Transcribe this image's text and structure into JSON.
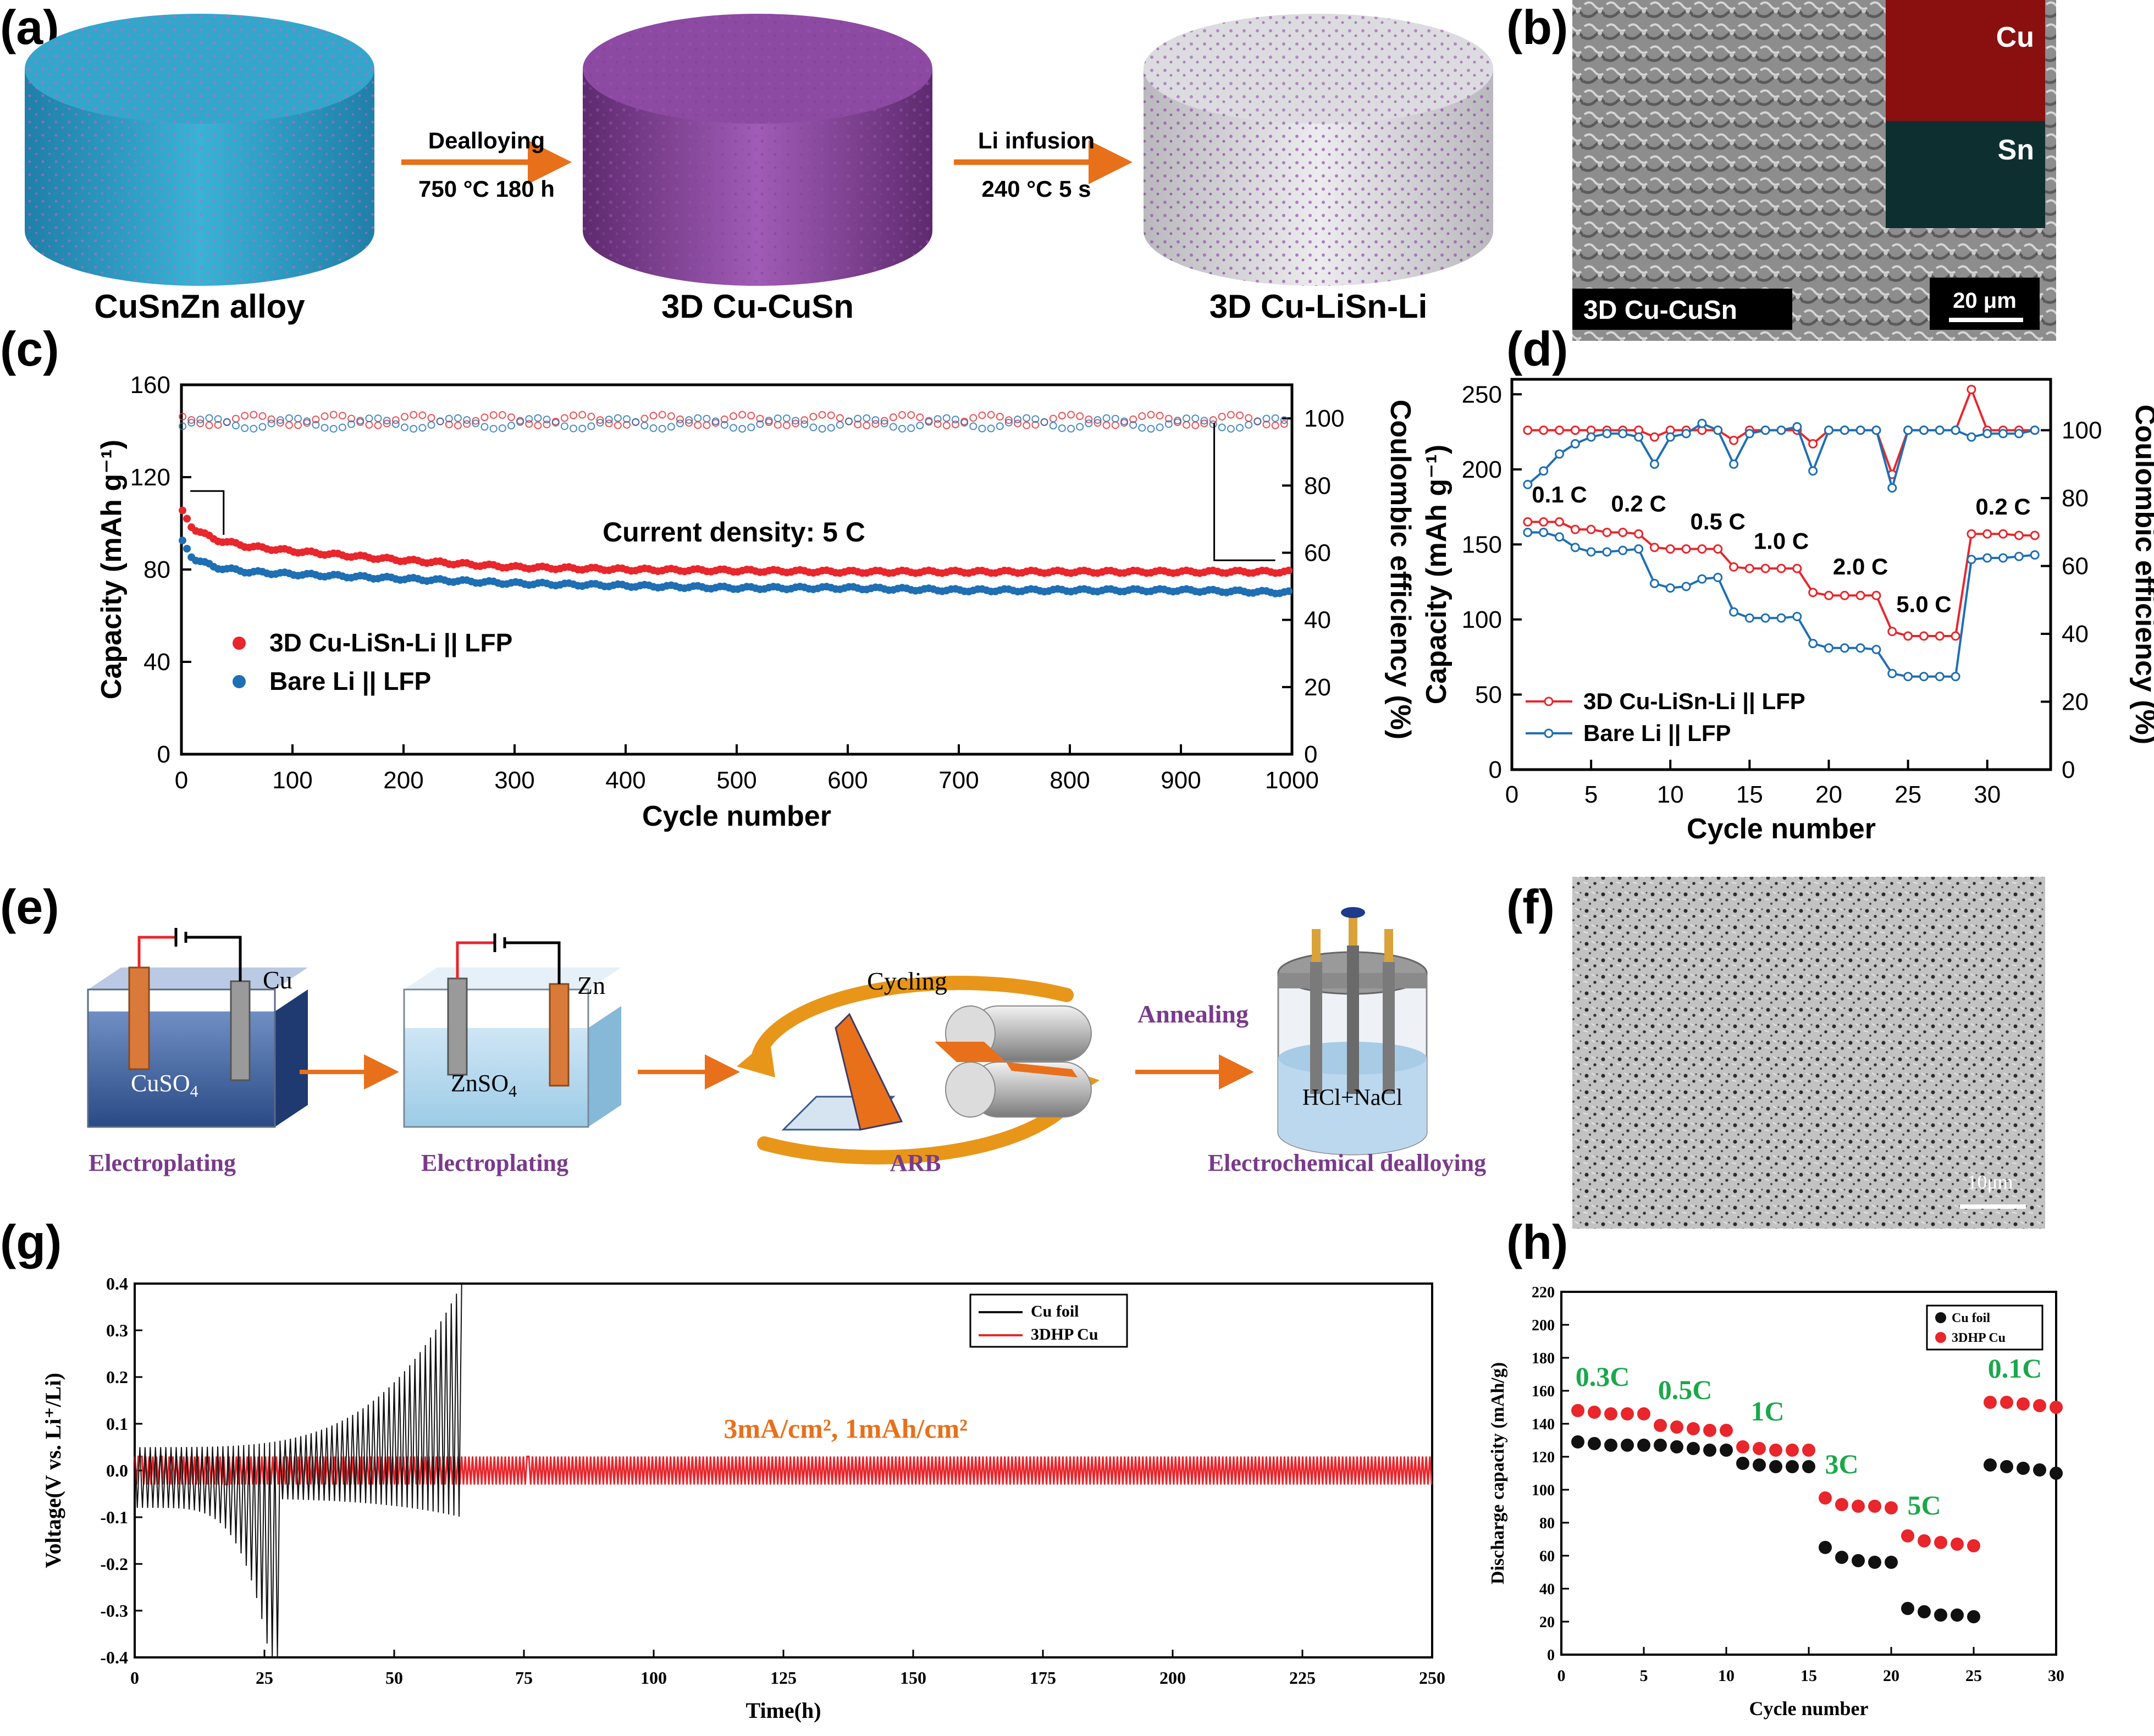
{
  "panel_labels": {
    "a": "(a)",
    "b": "(b)",
    "c": "(c)",
    "d": "(d)",
    "e": "(e)",
    "f": "(f)",
    "g": "(g)",
    "h": "(h)"
  },
  "colors": {
    "red": "#e8262c",
    "blue": "#1e6fb3",
    "blue_alloy": "#2a9fc4",
    "purple": "#8a3f9a",
    "orange": "#e8701a",
    "green": "#1aa84a",
    "dark_purple": "#7a3a8c",
    "grey_sem": "#9a9a9a"
  },
  "panel_a": {
    "items": [
      "CuSnZn alloy",
      "3D Cu-CuSn",
      "3D Cu-LiSn-Li"
    ],
    "arrow1": {
      "top": "Dealloying",
      "bottom": "750 °C 180 h"
    },
    "arrow2": {
      "top": "Li infusion",
      "bottom": "240 °C 5 s"
    }
  },
  "panel_b": {
    "label": "3D Cu-CuSn",
    "scale": "20 μm",
    "map_cu": "Cu",
    "map_sn": "Sn"
  },
  "panel_e": {
    "electrode_cu": "Cu",
    "electrode_zn": "Zn",
    "sol1": "CuSO",
    "sol1_sub": "4",
    "sol2": "ZnSO",
    "sol2_sub": "4",
    "cycling": "Cycling",
    "annealing": "Annealing",
    "sol3": "HCl+NaCl",
    "steps": [
      "Electroplating",
      "Electroplating",
      "ARB",
      "Electrochemical dealloying"
    ]
  },
  "panel_f": {
    "scale": "10μm"
  },
  "chart_data": [
    {
      "id": "c",
      "type": "scatter",
      "xlabel": "Cycle number",
      "ylabel": "Capacity (mAh g⁻¹)",
      "y2label": "Coulombic efficiency (%)",
      "xlim": [
        0,
        1000
      ],
      "ylim": [
        0,
        160
      ],
      "y2lim": [
        0,
        110
      ],
      "xticks": [
        0,
        100,
        200,
        300,
        400,
        500,
        600,
        700,
        800,
        900,
        1000
      ],
      "yticks": [
        0,
        40,
        80,
        120,
        160
      ],
      "y2ticks": [
        0,
        20,
        40,
        60,
        80,
        100
      ],
      "annotation": "Current density: 5 C",
      "series": [
        {
          "name": "3D Cu-LiSn-Li || LFP",
          "color": "#e8262c",
          "x": [
            1,
            10,
            30,
            60,
            100,
            150,
            200,
            300,
            400,
            500,
            600,
            700,
            800,
            900,
            1000
          ],
          "capacity": [
            105,
            98,
            93,
            90,
            88,
            86,
            84,
            81,
            80,
            79.5,
            79,
            79,
            79,
            79,
            79
          ],
          "ce": 99.5
        },
        {
          "name": "Bare Li || LFP",
          "color": "#1e6fb3",
          "x": [
            1,
            10,
            30,
            60,
            100,
            150,
            200,
            300,
            400,
            500,
            600,
            700,
            800,
            900,
            1000
          ],
          "capacity": [
            92,
            85,
            81,
            79,
            78,
            77,
            76,
            74,
            73,
            72,
            72,
            71,
            71,
            71,
            70
          ],
          "ce": 98.5
        }
      ]
    },
    {
      "id": "d",
      "type": "line",
      "xlabel": "Cycle number",
      "ylabel": "Capacity (mAh g⁻¹)",
      "y2label": "Coulombic efficiency (%)",
      "xlim": [
        0,
        34
      ],
      "ylim": [
        0,
        260
      ],
      "y2lim": [
        0,
        115
      ],
      "xticks": [
        0,
        5,
        10,
        15,
        20,
        25,
        30
      ],
      "yticks": [
        0,
        50,
        100,
        150,
        200,
        250
      ],
      "y2ticks": [
        0,
        20,
        40,
        60,
        80,
        100
      ],
      "rate_labels": [
        "0.1 C",
        "0.2 C",
        "0.5 C",
        "1.0 C",
        "2.0 C",
        "5.0 C",
        "0.2 C"
      ],
      "series": [
        {
          "name": "3D Cu-LiSn-Li || LFP",
          "color": "#e8262c",
          "capacity": [
            165,
            165,
            165,
            160,
            160,
            158,
            158,
            157,
            148,
            147,
            147,
            147,
            147,
            135,
            134,
            134,
            134,
            134,
            118,
            116,
            116,
            116,
            116,
            92,
            89,
            89,
            89,
            89,
            157,
            157,
            157,
            156,
            156
          ],
          "ce": [
            100,
            100,
            100,
            100,
            100,
            100,
            100,
            100,
            98,
            100,
            100,
            100,
            100,
            97,
            100,
            100,
            100,
            100,
            96,
            100,
            100,
            100,
            100,
            87,
            100,
            100,
            100,
            100,
            112,
            100,
            100,
            100,
            100
          ]
        },
        {
          "name": "Bare Li || LFP",
          "color": "#1e6fb3",
          "capacity": [
            158,
            158,
            155,
            148,
            145,
            145,
            146,
            147,
            124,
            121,
            122,
            127,
            128,
            105,
            101,
            101,
            101,
            102,
            84,
            81,
            81,
            81,
            80,
            64,
            62,
            62,
            62,
            62,
            140,
            141,
            141,
            142,
            143
          ],
          "ce": [
            84,
            88,
            93,
            96,
            98,
            99,
            99,
            98,
            90,
            98,
            99,
            102,
            100,
            90,
            99,
            100,
            100,
            101,
            88,
            100,
            100,
            100,
            100,
            83,
            100,
            100,
            100,
            100,
            98,
            99,
            99,
            99,
            100
          ]
        }
      ]
    },
    {
      "id": "g",
      "type": "line",
      "xlabel": "Time(h)",
      "ylabel": "Voltage(V vs. Li⁺/Li)",
      "xlim": [
        0,
        250
      ],
      "ylim": [
        -0.4,
        0.4
      ],
      "xticks": [
        0,
        25,
        50,
        75,
        100,
        125,
        150,
        175,
        200,
        225,
        250
      ],
      "yticks": [
        -0.4,
        -0.3,
        -0.2,
        -0.1,
        0.0,
        0.1,
        0.2,
        0.3,
        0.4
      ],
      "annotation": "3mA/cm², 1mAh/cm²",
      "series": [
        {
          "name": "Cu foil",
          "color": "#111111",
          "end_time": 63,
          "amplitude_start": 0.05,
          "amplitude_end": 0.4
        },
        {
          "name": "3DHP Cu",
          "color": "#e8262c",
          "end_time": 250,
          "amplitude": 0.03
        }
      ]
    },
    {
      "id": "h",
      "type": "scatter",
      "xlabel": "Cycle number",
      "ylabel": "Discharge capacity (mAh/g)",
      "xlim": [
        0,
        30
      ],
      "ylim": [
        0,
        220
      ],
      "xticks": [
        0,
        5,
        10,
        15,
        20,
        25,
        30
      ],
      "yticks": [
        0,
        20,
        40,
        60,
        80,
        100,
        120,
        140,
        160,
        180,
        200,
        220
      ],
      "rate_labels": [
        "0.3C",
        "0.5C",
        "1C",
        "3C",
        "5C",
        "0.1C"
      ],
      "series": [
        {
          "name": "Cu foil",
          "color": "#111111",
          "x": [
            1,
            2,
            3,
            4,
            5,
            6,
            7,
            8,
            9,
            10,
            11,
            12,
            13,
            14,
            15,
            16,
            17,
            18,
            19,
            20,
            21,
            22,
            23,
            24,
            25,
            26,
            27,
            28,
            29,
            30
          ],
          "values": [
            129,
            128,
            127,
            127,
            127,
            127,
            126,
            125,
            124,
            124,
            116,
            115,
            114,
            114,
            114,
            65,
            59,
            57,
            56,
            56,
            28,
            26,
            24,
            24,
            23,
            115,
            114,
            113,
            112,
            110
          ]
        },
        {
          "name": "3DHP Cu",
          "color": "#e8262c",
          "x": [
            1,
            2,
            3,
            4,
            5,
            6,
            7,
            8,
            9,
            10,
            11,
            12,
            13,
            14,
            15,
            16,
            17,
            18,
            19,
            20,
            21,
            22,
            23,
            24,
            25,
            26,
            27,
            28,
            29,
            30
          ],
          "values": [
            148,
            147,
            146,
            146,
            146,
            139,
            138,
            137,
            136,
            136,
            126,
            125,
            124,
            124,
            124,
            95,
            91,
            90,
            90,
            89,
            72,
            69,
            68,
            67,
            66,
            153,
            153,
            152,
            151,
            150
          ]
        }
      ]
    }
  ]
}
